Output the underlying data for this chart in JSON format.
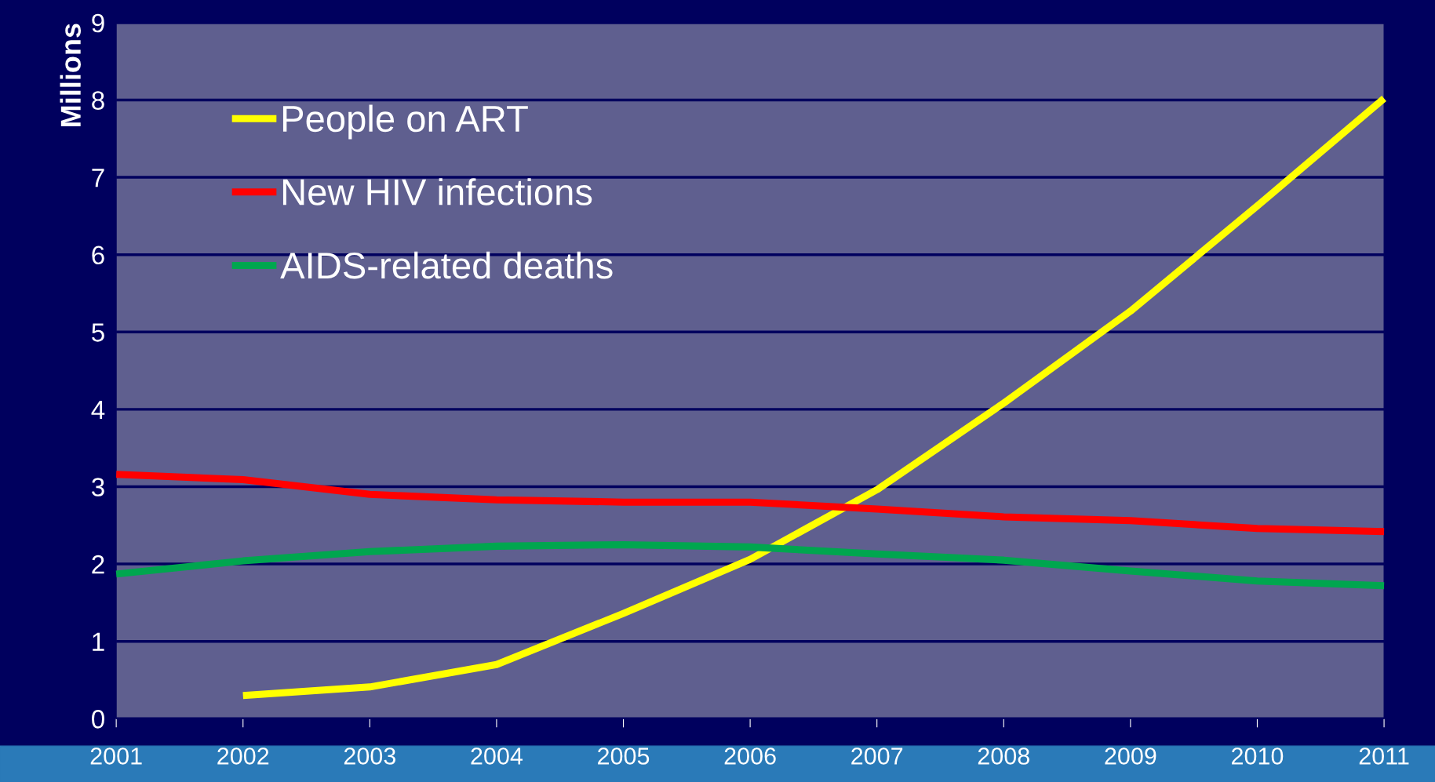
{
  "chart_data": {
    "type": "line",
    "ylabel": "Millions",
    "categories": [
      "2001",
      "2002",
      "2003",
      "2004",
      "2005",
      "2006",
      "2007",
      "2008",
      "2009",
      "2010",
      "2011"
    ],
    "series": [
      {
        "name": "People on ART",
        "color": "#ffff00",
        "values": [
          null,
          0.3,
          0.41,
          0.7,
          1.36,
          2.06,
          2.96,
          4.08,
          5.27,
          6.63,
          8.02
        ]
      },
      {
        "name": "New HIV infections",
        "color": "#ff0000",
        "values": [
          3.16,
          3.09,
          2.9,
          2.83,
          2.8,
          2.8,
          2.71,
          2.61,
          2.56,
          2.46,
          2.42
        ]
      },
      {
        "name": "AIDS-related deaths",
        "color": "#00a64f",
        "values": [
          1.87,
          2.04,
          2.16,
          2.23,
          2.25,
          2.22,
          2.13,
          2.05,
          1.91,
          1.78,
          1.72
        ]
      }
    ],
    "ylim": [
      0,
      9
    ],
    "yticks": [
      0,
      1,
      2,
      3,
      4,
      5,
      6,
      7,
      8,
      9
    ],
    "grid": "y",
    "legend": "top left",
    "marker": "none",
    "line_style": "solid"
  }
}
